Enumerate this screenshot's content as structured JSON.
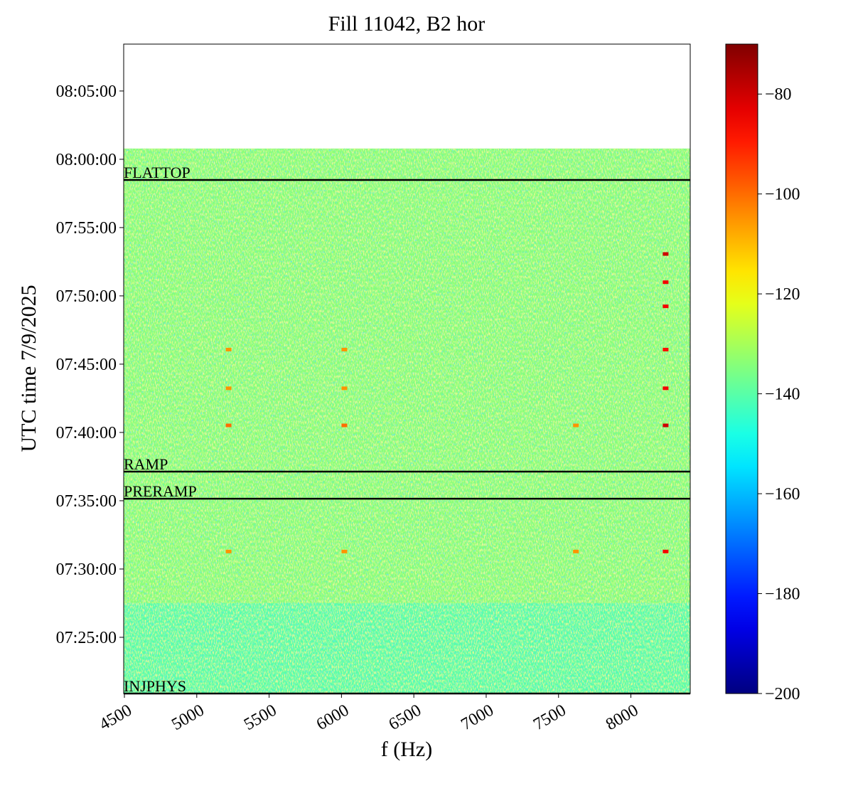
{
  "chart_data": {
    "type": "heatmap",
    "title": "Fill 11042, B2 hor",
    "x_label": "f (Hz)",
    "y_label": "UTC time 7/9/2025",
    "xlim": [
      4495,
      8410
    ],
    "xticks": [
      4500,
      5000,
      5500,
      6000,
      6500,
      7000,
      7500,
      8000
    ],
    "ylim": [
      26453,
      29306
    ],
    "yticks": [
      {
        "value": 26700,
        "label": "07:25:00"
      },
      {
        "value": 27000,
        "label": "07:30:00"
      },
      {
        "value": 27300,
        "label": "07:35:00"
      },
      {
        "value": 27600,
        "label": "07:40:00"
      },
      {
        "value": 27900,
        "label": "07:45:00"
      },
      {
        "value": 28200,
        "label": "07:50:00"
      },
      {
        "value": 28500,
        "label": "07:55:00"
      },
      {
        "value": 28800,
        "label": "08:00:00"
      },
      {
        "value": 29100,
        "label": "08:05:00"
      }
    ],
    "colormap": "jet",
    "clim": [
      -200,
      -70
    ],
    "cticks": [
      {
        "value": -200,
        "label": "−200"
      },
      {
        "value": -180,
        "label": "−180"
      },
      {
        "value": -160,
        "label": "−160"
      },
      {
        "value": -140,
        "label": "−140"
      },
      {
        "value": -120,
        "label": "−120"
      },
      {
        "value": -100,
        "label": "−100"
      },
      {
        "value": -80,
        "label": "−80"
      }
    ],
    "bands": [
      {
        "from": 26453,
        "to": 26850,
        "value": -140
      },
      {
        "from": 26850,
        "to": 28847,
        "value": -134
      }
    ],
    "points": [
      {
        "x": 8240,
        "y": 28384,
        "value": -80
      },
      {
        "x": 8240,
        "y": 28260,
        "value": -85
      },
      {
        "x": 8240,
        "y": 28154,
        "value": -85
      },
      {
        "x": 8240,
        "y": 27964,
        "value": -88
      },
      {
        "x": 8240,
        "y": 27794,
        "value": -85
      },
      {
        "x": 8240,
        "y": 27631,
        "value": -80
      },
      {
        "x": 8240,
        "y": 27077,
        "value": -85
      },
      {
        "x": 5220,
        "y": 27964,
        "value": -105
      },
      {
        "x": 5220,
        "y": 27794,
        "value": -105
      },
      {
        "x": 5220,
        "y": 27631,
        "value": -100
      },
      {
        "x": 5220,
        "y": 27077,
        "value": -105
      },
      {
        "x": 6020,
        "y": 27964,
        "value": -105
      },
      {
        "x": 6020,
        "y": 27794,
        "value": -105
      },
      {
        "x": 6020,
        "y": 27631,
        "value": -100
      },
      {
        "x": 6020,
        "y": 27077,
        "value": -105
      },
      {
        "x": 7620,
        "y": 27631,
        "value": -105
      },
      {
        "x": 7620,
        "y": 27077,
        "value": -105
      }
    ],
    "events": [
      {
        "label": "FLATTOP",
        "y": 28709
      },
      {
        "label": "RAMP",
        "y": 27428
      },
      {
        "label": "PRERAMP",
        "y": 27309
      },
      {
        "label": "INJPHYS",
        "y": 26453
      }
    ]
  }
}
